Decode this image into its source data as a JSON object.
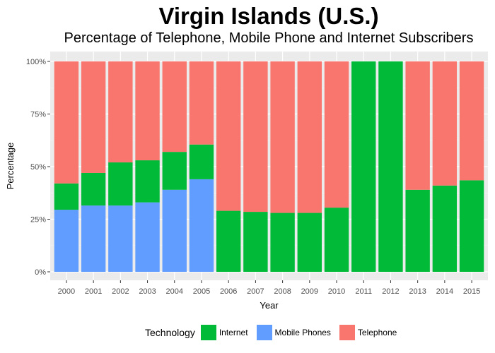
{
  "chart_data": {
    "type": "bar",
    "stacked": true,
    "title": "Virgin Islands (U.S.)",
    "subtitle": "Percentage of Telephone, Mobile Phone and Internet Subscribers",
    "xlabel": "Year",
    "ylabel": "Percentage",
    "ylim": [
      0,
      1
    ],
    "yticks": [
      0,
      0.25,
      0.5,
      0.75,
      1
    ],
    "ytick_labels": [
      "0%",
      "25%",
      "50%",
      "75%",
      "100%"
    ],
    "categories": [
      "2000",
      "2001",
      "2002",
      "2003",
      "2004",
      "2005",
      "2006",
      "2007",
      "2008",
      "2009",
      "2010",
      "2011",
      "2012",
      "2013",
      "2014",
      "2015"
    ],
    "series": [
      {
        "name": "Mobile Phones",
        "color": "#619CFF",
        "values": [
          0.295,
          0.315,
          0.315,
          0.33,
          0.39,
          0.44,
          0,
          0,
          0,
          0,
          0,
          0,
          0,
          0,
          0,
          0
        ]
      },
      {
        "name": "Internet",
        "color": "#00BA38",
        "values": [
          0.125,
          0.155,
          0.205,
          0.2,
          0.18,
          0.165,
          0.29,
          0.285,
          0.28,
          0.28,
          0.305,
          1.0,
          1.0,
          0.39,
          0.41,
          0.435
        ]
      },
      {
        "name": "Telephone",
        "color": "#F8766D",
        "values": [
          0.58,
          0.53,
          0.48,
          0.47,
          0.43,
          0.395,
          0.71,
          0.715,
          0.72,
          0.72,
          0.695,
          0,
          0,
          0.61,
          0.59,
          0.565
        ]
      }
    ],
    "legend": {
      "title": "Technology",
      "position": "bottom",
      "items": [
        {
          "name": "Internet",
          "color": "#00BA38"
        },
        {
          "name": "Mobile Phones",
          "color": "#619CFF"
        },
        {
          "name": "Telephone",
          "color": "#F8766D"
        }
      ]
    },
    "panel_background": "#EBEBEB",
    "grid": true
  }
}
